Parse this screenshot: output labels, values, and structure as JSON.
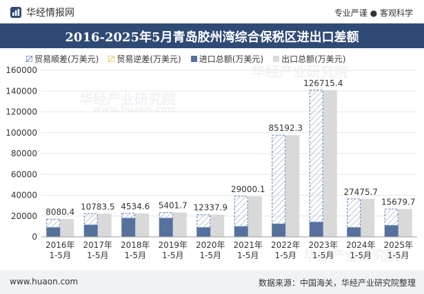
{
  "header": {
    "brand": "华经情报网",
    "tagline": "专业严谨 ● 客观科学"
  },
  "title": "2016-2025年5月青岛胶州湾综合保税区进出口差额",
  "footer": {
    "site": "www.huaon.com",
    "source": "数据来源：中国海关，华经产业研究院整理"
  },
  "watermarks": [
    "华经产业研究院",
    "www.huaon.com",
    "华经产业研究院",
    "华经产业研究院"
  ],
  "colors": {
    "surplus": "#5b7fb5",
    "deficit": "#e8c25b",
    "import": "#56719c",
    "export": "#d9d9d9",
    "titlebar": "#2f4a75"
  },
  "chart_data": {
    "type": "bar",
    "categories": [
      "2016年\n1-5月",
      "2017年\n1-5月",
      "2018年\n1-5月",
      "2019年\n1-5月",
      "2020年\n1-5月",
      "2021年\n1-5月",
      "2022年\n1-5月",
      "2023年\n1-5月",
      "2024年\n1-5月",
      "2025年\n1-5月"
    ],
    "series": [
      {
        "name": "贸易顺差(万美元)",
        "values": [
          8080.4,
          10783.5,
          4534.6,
          5401.7,
          12337.9,
          29000.1,
          85192.3,
          126715.4,
          27475.7,
          15679.7
        ]
      },
      {
        "name": "贸易逆差(万美元)",
        "values": [
          0,
          0,
          0,
          0,
          0,
          0,
          0,
          0,
          0,
          0
        ]
      },
      {
        "name": "进口总额(万美元)",
        "values": [
          9000,
          11500,
          18000,
          18000,
          9000,
          10000,
          12500,
          14200,
          9000,
          11000
        ]
      },
      {
        "name": "出口总额(万美元)",
        "values": [
          17080.4,
          22283.5,
          22534.6,
          23401.7,
          21337.9,
          39000.1,
          97692.3,
          140915.4,
          36475.7,
          26679.7
        ]
      }
    ],
    "data_labels": [
      "8080.4",
      "10783.5",
      "4534.6",
      "5401.7",
      "12337.9",
      "29000.1",
      "85192.3",
      "126715.4",
      "27475.7",
      "15679.7"
    ],
    "y_ticks": [
      "0",
      "20000",
      "40000",
      "60000",
      "80000",
      "100000",
      "120000",
      "140000",
      "160000"
    ],
    "ylim": [
      0,
      160000
    ],
    "legend_position": "top"
  }
}
